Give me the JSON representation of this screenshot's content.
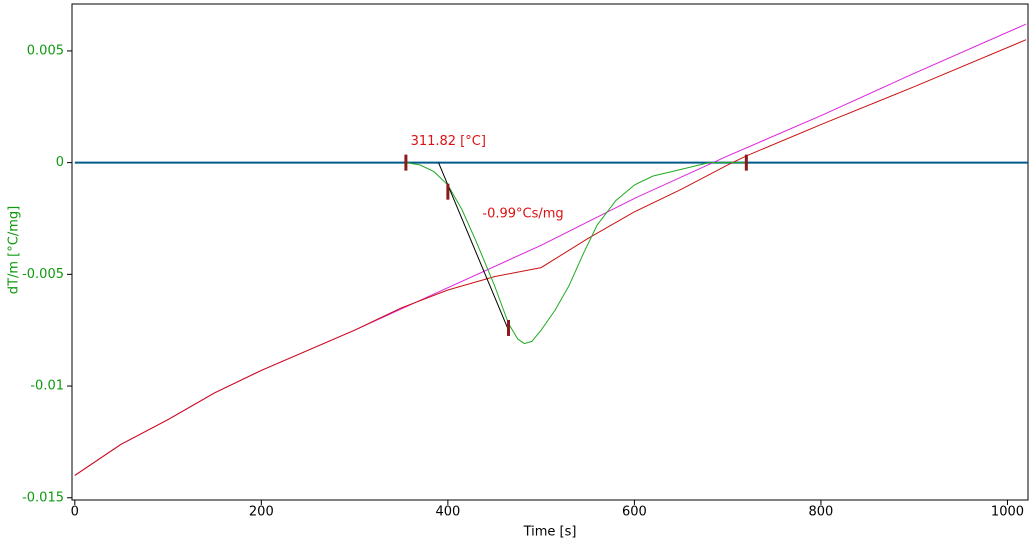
{
  "chart_data": {
    "type": "line",
    "xlabel": "Time [s]",
    "ylabel": "dT/m  [°C/mg]",
    "xlim": [
      -3,
      1022
    ],
    "ylim": [
      -0.0151,
      0.0071
    ],
    "xticks": [
      0,
      200,
      400,
      600,
      800,
      1000
    ],
    "yticks": [
      0.005,
      0,
      -0.005,
      -0.01,
      -0.015
    ],
    "series": [
      {
        "color": "#005a8c",
        "x": [
          0,
          1022
        ],
        "values": [
          0,
          0
        ]
      },
      {
        "color": "#dd22dd",
        "x": [
          0,
          50,
          100,
          150,
          200,
          300,
          400,
          500,
          600,
          700,
          800,
          900,
          1020
        ],
        "values": [
          -0.014,
          -0.0126,
          -0.0115,
          -0.0103,
          -0.0093,
          -0.0075,
          -0.0056,
          -0.0037,
          -0.0016,
          0.0003,
          0.0021,
          0.004,
          0.0062
        ]
      },
      {
        "color": "#cc1111",
        "x": [
          0,
          50,
          100,
          150,
          200,
          300,
          350,
          400,
          450,
          500,
          550,
          600,
          650,
          700,
          720,
          800,
          900,
          1020
        ],
        "values": [
          -0.014,
          -0.0126,
          -0.0115,
          -0.0103,
          -0.0093,
          -0.0075,
          -0.0065,
          -0.0057,
          -0.0051,
          -0.0047,
          -0.0034,
          -0.0022,
          -0.0012,
          -0.0001,
          0.0003,
          0.0017,
          0.0034,
          0.0055
        ]
      },
      {
        "color": "#22aa22",
        "x": [
          355,
          370,
          385,
          400,
          415,
          430,
          450,
          465,
          475,
          482,
          490,
          500,
          515,
          530,
          545,
          560,
          580,
          600,
          620,
          640,
          660,
          680,
          700,
          720
        ],
        "values": [
          0,
          -0.0001,
          -0.0004,
          -0.001,
          -0.0021,
          -0.0035,
          -0.0055,
          -0.0072,
          -0.0079,
          -0.0081,
          -0.008,
          -0.0075,
          -0.0066,
          -0.0055,
          -0.0041,
          -0.0028,
          -0.0017,
          -0.001,
          -0.0006,
          -0.0004,
          -0.0002,
          0,
          0,
          0
        ]
      },
      {
        "color": "#000000",
        "x": [
          390,
          465
        ],
        "values": [
          0,
          -0.0075
        ]
      }
    ],
    "markers": {
      "color": "#8b1a1a",
      "x": [
        355,
        400,
        465,
        720
      ],
      "values": [
        0,
        -0.0013,
        -0.0074,
        0
      ]
    },
    "annotations": [
      {
        "text": "311.82 [°C]",
        "x": 360,
        "y": 0.00095,
        "color": "#dd1111"
      },
      {
        "text": "-0.99°Cs/mg",
        "x": 437,
        "y": -0.0023,
        "color": "#dd1111"
      }
    ]
  }
}
